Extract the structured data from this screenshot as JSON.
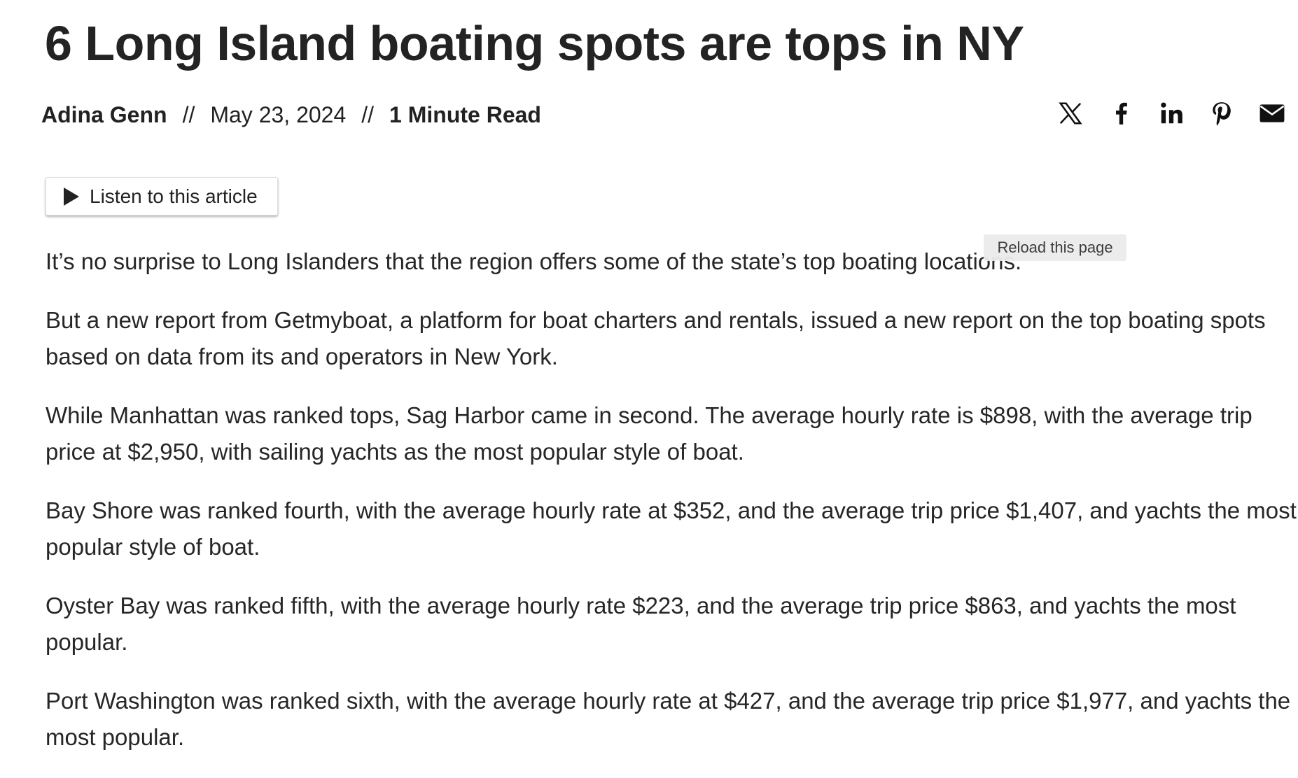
{
  "header": {
    "title": "6 Long Island boating spots are tops in NY",
    "author": "Adina Genn",
    "separator": "//",
    "date": "May 23, 2024",
    "read_time": "1 Minute Read"
  },
  "listen_button": "Listen to this article",
  "tooltip": "Reload this page",
  "paragraphs": [
    "It’s no surprise to Long Islanders that the region offers some of the state’s top boating locations.",
    "But a new report from Getmyboat, a platform for boat charters and rentals, issued a new report on the top boating spots based on data from its and operators in New York.",
    "While Manhattan was ranked tops, Sag Harbor came in second. The average hourly rate is $898, with the average trip price at $2,950, with sailing yachts as the most popular style of boat.",
    "Bay Shore was ranked fourth, with the average hourly rate at $352, and the average trip price $1,407, and yachts the most popular style of boat.",
    "Oyster Bay was ranked fifth, with the average hourly rate $223, and the average trip price $863, and yachts the most popular.",
    "Port Washington was ranked sixth, with the average hourly rate at $427, and the average trip price $1,977, and yachts the most popular."
  ]
}
